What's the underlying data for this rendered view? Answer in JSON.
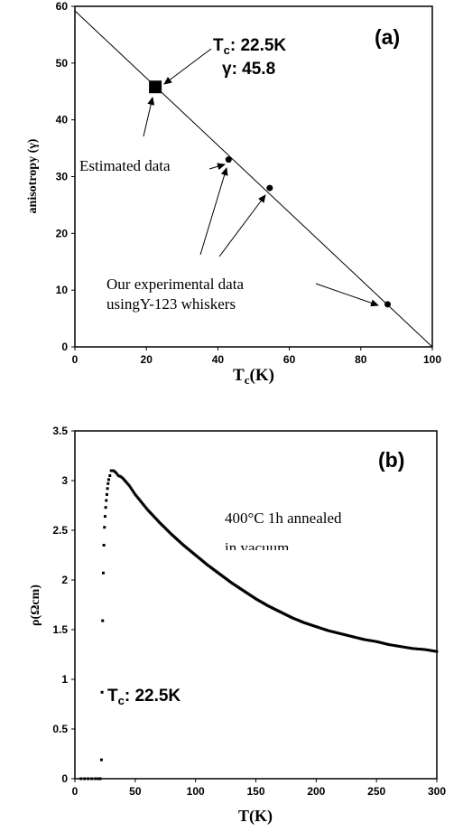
{
  "chart_data": [
    {
      "panel_label": "(a)",
      "type": "scatter",
      "xlabel_main": "T",
      "xlabel_sub": "c",
      "xlabel_unit": "(K)",
      "ylabel": "anisotropy (γ)",
      "xlim": [
        0,
        100
      ],
      "ylim": [
        0,
        60
      ],
      "xticks": [
        0,
        20,
        40,
        60,
        80,
        100
      ],
      "yticks": [
        0,
        10,
        20,
        30,
        40,
        50,
        60
      ],
      "fit_line": [
        [
          0,
          59.2
        ],
        [
          100,
          0
        ]
      ],
      "estimated_point": {
        "x": 22.5,
        "y": 45.8
      },
      "experimental_points": [
        {
          "x": 43,
          "y": 33
        },
        {
          "x": 54.5,
          "y": 28
        },
        {
          "x": 87.5,
          "y": 7.5
        }
      ],
      "annotations": {
        "tc_main": "T",
        "tc_sub": "c",
        "tc_value": ": 22.5K",
        "gamma": "γ: 45.8",
        "estimated": "Estimated data",
        "experimental_line1": "Our experimental data",
        "experimental_line2": "usingY-123 whiskers"
      }
    },
    {
      "panel_label": "(b)",
      "type": "scatter",
      "xlabel": "T(K)",
      "ylabel": "ρ(Ωcm)",
      "xlim": [
        0,
        300
      ],
      "ylim": [
        0,
        3.5
      ],
      "xticks": [
        0,
        50,
        100,
        150,
        200,
        250,
        300
      ],
      "yticks": [
        0,
        0.5,
        1,
        1.5,
        2,
        2.5,
        3,
        3.5
      ],
      "transition_points": [
        {
          "x": 5,
          "y": 0
        },
        {
          "x": 8,
          "y": 0
        },
        {
          "x": 11,
          "y": 0
        },
        {
          "x": 14,
          "y": 0
        },
        {
          "x": 17,
          "y": 0
        },
        {
          "x": 19.5,
          "y": 0
        },
        {
          "x": 21,
          "y": 0
        },
        {
          "x": 22,
          "y": 0.19
        },
        {
          "x": 22.5,
          "y": 0.87
        },
        {
          "x": 23,
          "y": 1.59
        },
        {
          "x": 23.5,
          "y": 2.07
        },
        {
          "x": 24,
          "y": 2.35
        },
        {
          "x": 24.5,
          "y": 2.53
        },
        {
          "x": 25,
          "y": 2.64
        },
        {
          "x": 25.5,
          "y": 2.73
        },
        {
          "x": 26,
          "y": 2.8
        },
        {
          "x": 26.5,
          "y": 2.86
        },
        {
          "x": 27,
          "y": 2.92
        },
        {
          "x": 27.5,
          "y": 2.97
        },
        {
          "x": 28,
          "y": 3.01
        },
        {
          "x": 29,
          "y": 3.05
        }
      ],
      "curve_points": [
        {
          "x": 30,
          "y": 3.1
        },
        {
          "x": 32,
          "y": 3.1
        },
        {
          "x": 34,
          "y": 3.08
        },
        {
          "x": 36,
          "y": 3.05
        },
        {
          "x": 38,
          "y": 3.04
        },
        {
          "x": 40,
          "y": 3.02
        },
        {
          "x": 45,
          "y": 2.95
        },
        {
          "x": 50,
          "y": 2.86
        },
        {
          "x": 60,
          "y": 2.71
        },
        {
          "x": 70,
          "y": 2.58
        },
        {
          "x": 80,
          "y": 2.46
        },
        {
          "x": 90,
          "y": 2.35
        },
        {
          "x": 100,
          "y": 2.25
        },
        {
          "x": 110,
          "y": 2.15
        },
        {
          "x": 120,
          "y": 2.06
        },
        {
          "x": 130,
          "y": 1.97
        },
        {
          "x": 140,
          "y": 1.89
        },
        {
          "x": 150,
          "y": 1.81
        },
        {
          "x": 160,
          "y": 1.74
        },
        {
          "x": 170,
          "y": 1.68
        },
        {
          "x": 180,
          "y": 1.62
        },
        {
          "x": 190,
          "y": 1.57
        },
        {
          "x": 200,
          "y": 1.53
        },
        {
          "x": 210,
          "y": 1.49
        },
        {
          "x": 220,
          "y": 1.46
        },
        {
          "x": 230,
          "y": 1.43
        },
        {
          "x": 240,
          "y": 1.4
        },
        {
          "x": 250,
          "y": 1.38
        },
        {
          "x": 260,
          "y": 1.35
        },
        {
          "x": 270,
          "y": 1.33
        },
        {
          "x": 280,
          "y": 1.31
        },
        {
          "x": 290,
          "y": 1.3
        },
        {
          "x": 300,
          "y": 1.28
        }
      ],
      "annotations": {
        "anneal_line1": "400°C 1h annealed",
        "anneal_line2": "in vacuum",
        "tc_main": "T",
        "tc_sub": "c",
        "tc_value": ": 22.5K"
      }
    }
  ]
}
